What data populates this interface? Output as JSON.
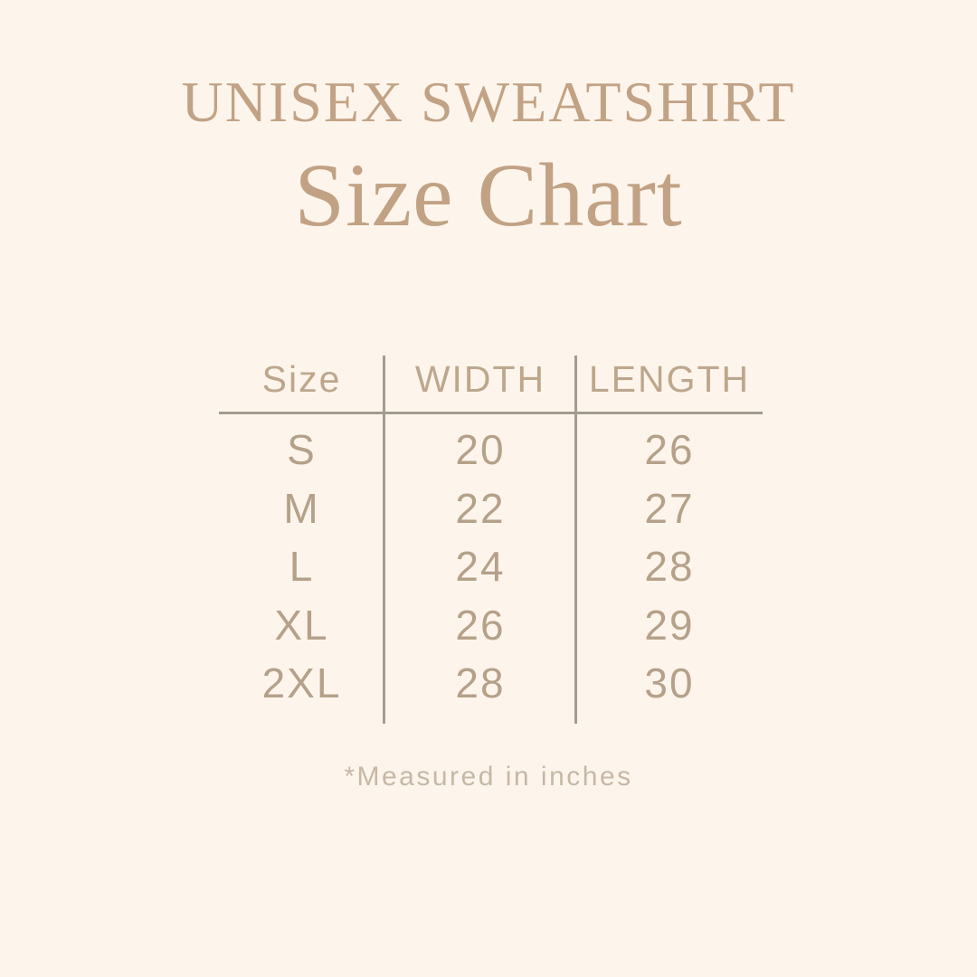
{
  "canvas": {
    "background": "#fdf5ec"
  },
  "header": {
    "title": "UNISEX SWEATSHIRT",
    "subtitle": "Size Chart"
  },
  "footer": {
    "note": "*Measured in inches"
  },
  "colors": {
    "title": "#c2a284",
    "table_text": "#b5a189",
    "table_header_text": "#bda78c",
    "line": "#a69a8e",
    "footnote": "#c7b7a5"
  },
  "chart_data": {
    "type": "table",
    "title": "UNISEX SWEATSHIRT Size Chart",
    "columns": [
      "Size",
      "WIDTH",
      "LENGTH"
    ],
    "rows": [
      [
        "S",
        "20",
        "26"
      ],
      [
        "M",
        "22",
        "27"
      ],
      [
        "L",
        "24",
        "28"
      ],
      [
        "XL",
        "26",
        "29"
      ],
      [
        "2XL",
        "28",
        "30"
      ]
    ],
    "units": "inches",
    "note": "*Measured in inches"
  }
}
